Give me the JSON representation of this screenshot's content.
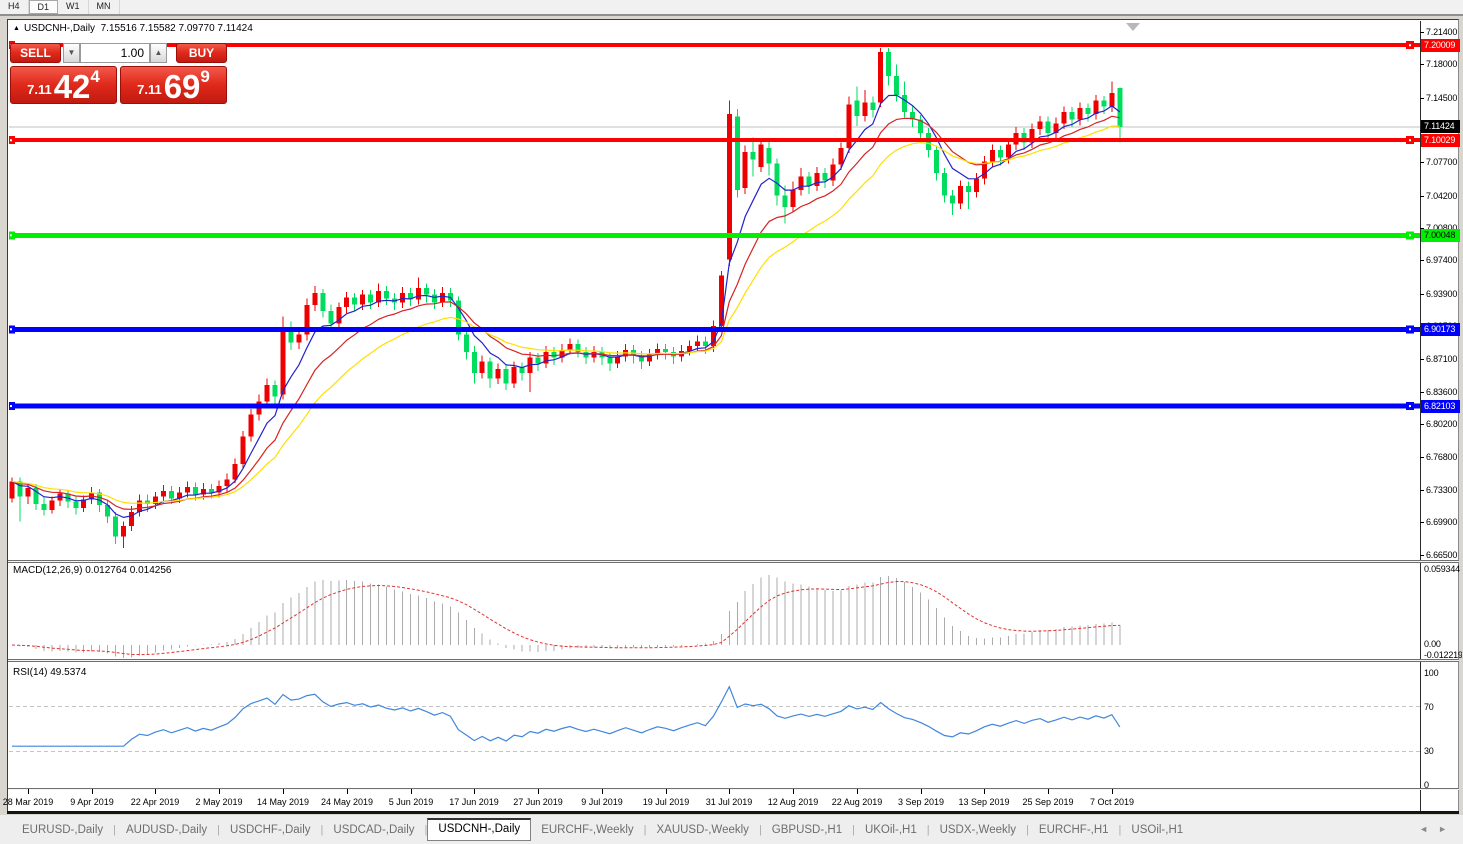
{
  "toolbar": {
    "timeframes": [
      "H4",
      "D1",
      "W1",
      "MN"
    ],
    "active": "D1"
  },
  "title": {
    "collapse_arrow": "▲",
    "symbol": "USDCNH-,Daily",
    "ohlc": "7.15516 7.15582 7.09770 7.11424"
  },
  "trade_panel": {
    "sell_label": "SELL",
    "buy_label": "BUY",
    "volume": "1.00",
    "down_arrow": "▼",
    "up_arrow": "▲",
    "sell_price_main": "7.11",
    "sell_price_big": "42",
    "sell_price_sup": "4",
    "buy_price_main": "7.11",
    "buy_price_big": "69",
    "buy_price_sup": "9"
  },
  "price_axis": {
    "ticks": [
      "7.21400",
      "7.18000",
      "7.14500",
      "7.11100",
      "7.07700",
      "7.04200",
      "7.00800",
      "6.97400",
      "6.93900",
      "6.90500",
      "6.87100",
      "6.83600",
      "6.80200",
      "6.76800",
      "6.73300",
      "6.69900",
      "6.66500"
    ]
  },
  "lines": [
    {
      "price": 7.20009,
      "label": "7.20009",
      "color": "#FF0000",
      "thickness": 4,
      "badge_fg": "#FFFFFF"
    },
    {
      "price": 7.10029,
      "label": "7.10029",
      "color": "#FF0000",
      "thickness": 4,
      "badge_fg": "#FFFFFF"
    },
    {
      "price": 7.00048,
      "label": "7.00048",
      "color": "#00EE00",
      "thickness": 5,
      "badge_fg": "#000000"
    },
    {
      "price": 6.90173,
      "label": "6.90173",
      "color": "#0000FF",
      "thickness": 5,
      "badge_fg": "#FFFFFF"
    },
    {
      "price": 6.82103,
      "label": "6.82103",
      "color": "#0000FF",
      "thickness": 5,
      "badge_fg": "#FFFFFF"
    }
  ],
  "current_price": {
    "label": "7.11424",
    "price": 7.11424,
    "line_color": "#C0C0C0",
    "badge_bg": "#000000",
    "badge_fg": "#FFFFFF"
  },
  "indicators": {
    "macd": {
      "label": "MACD(12,26,9) 0.012764 0.014256",
      "fast": 12,
      "slow": 26,
      "signal": 9,
      "axis_max": "0.059344",
      "axis_zero": "0.00",
      "axis_min": "-0.0122195",
      "bar_color": "#ABABAB",
      "signal_color": "#E23232"
    },
    "rsi": {
      "label": "RSI(14) 49.5374",
      "period": 14,
      "axis": [
        "100",
        "70",
        "30",
        "0"
      ],
      "levels": [
        70,
        30
      ],
      "line_color": "#4086DE",
      "level_color": "#C4C4C4"
    }
  },
  "date_axis": {
    "labels": [
      "28 Mar 2019",
      "9 Apr 2019",
      "22 Apr 2019",
      "2 May 2019",
      "14 May 2019",
      "24 May 2019",
      "5 Jun 2019",
      "17 Jun 2019",
      "27 Jun 2019",
      "9 Jul 2019",
      "19 Jul 2019",
      "31 Jul 2019",
      "12 Aug 2019",
      "22 Aug 2019",
      "3 Sep 2019",
      "13 Sep 2019",
      "25 Sep 2019",
      "7 Oct 2019"
    ],
    "indices": [
      2,
      10,
      18,
      26,
      34,
      42,
      50,
      58,
      66,
      74,
      82,
      90,
      98,
      106,
      114,
      122,
      130,
      138
    ]
  },
  "tabs": {
    "items": [
      {
        "label": "EURUSD-,Daily",
        "active": false
      },
      {
        "label": "AUDUSD-,Daily",
        "active": false
      },
      {
        "label": "USDCHF-,Daily",
        "active": false
      },
      {
        "label": "USDCAD-,Daily",
        "active": false
      },
      {
        "label": "USDCNH-,Daily",
        "active": true
      },
      {
        "label": "EURCHF-,Weekly",
        "active": false
      },
      {
        "label": "XAUUSD-,Weekly",
        "active": false
      },
      {
        "label": "GBPUSD-,H1",
        "active": false
      },
      {
        "label": "UKOil-,H1",
        "active": false
      },
      {
        "label": "USDX-,Weekly",
        "active": false
      },
      {
        "label": "EURCHF-,H1",
        "active": false
      },
      {
        "label": "USOil-,H1",
        "active": false
      }
    ],
    "prev_arrow": "◄",
    "next_arrow": "►"
  },
  "chart_data": {
    "type": "candlestick",
    "symbol": "USDCNH-",
    "period": "Daily",
    "ylim": [
      6.665,
      7.214
    ],
    "x_range_dates": [
      "28 Mar 2019",
      "8 Oct 2019"
    ],
    "up_color": "#EE0000",
    "down_color": "#00DC5E",
    "ma": [
      {
        "period": 6,
        "color": "#2323CC"
      },
      {
        "period": 12,
        "color": "#D42424"
      },
      {
        "period": 20,
        "color": "#FFDE00"
      }
    ],
    "ohlc_current": [
      7.15516,
      7.15582,
      7.0977,
      7.11424
    ],
    "candles": [
      [
        6.724,
        6.746,
        6.72,
        6.742
      ],
      [
        6.742,
        6.746,
        6.7,
        6.726
      ],
      [
        6.726,
        6.74,
        6.718,
        6.735
      ],
      [
        6.735,
        6.739,
        6.712,
        6.718
      ],
      [
        6.718,
        6.726,
        6.706,
        6.712
      ],
      [
        6.712,
        6.726,
        6.708,
        6.722
      ],
      [
        6.722,
        6.734,
        6.716,
        6.729
      ],
      [
        6.729,
        6.733,
        6.714,
        6.721
      ],
      [
        6.721,
        6.727,
        6.707,
        6.714
      ],
      [
        6.714,
        6.727,
        6.71,
        6.723
      ],
      [
        6.723,
        6.736,
        6.718,
        6.73
      ],
      [
        6.73,
        6.734,
        6.71,
        6.717
      ],
      [
        6.717,
        6.722,
        6.698,
        6.705
      ],
      [
        6.705,
        6.71,
        6.676,
        6.684
      ],
      [
        6.684,
        6.7,
        6.672,
        6.695
      ],
      [
        6.695,
        6.716,
        6.69,
        6.71
      ],
      [
        6.71,
        6.728,
        6.705,
        6.722
      ],
      [
        6.722,
        6.728,
        6.71,
        6.718
      ],
      [
        6.718,
        6.731,
        6.713,
        6.726
      ],
      [
        6.726,
        6.738,
        6.72,
        6.732
      ],
      [
        6.732,
        6.737,
        6.718,
        6.724
      ],
      [
        6.724,
        6.736,
        6.719,
        6.73
      ],
      [
        6.73,
        6.742,
        6.725,
        6.736
      ],
      [
        6.736,
        6.741,
        6.722,
        6.728
      ],
      [
        6.728,
        6.74,
        6.723,
        6.734
      ],
      [
        6.734,
        6.739,
        6.724,
        6.73
      ],
      [
        6.73,
        6.743,
        6.725,
        6.737
      ],
      [
        6.737,
        6.75,
        6.731,
        6.744
      ],
      [
        6.744,
        6.766,
        6.74,
        6.76
      ],
      [
        6.76,
        6.795,
        6.755,
        6.789
      ],
      [
        6.789,
        6.818,
        6.784,
        6.812
      ],
      [
        6.812,
        6.833,
        6.806,
        6.826
      ],
      [
        6.826,
        6.85,
        6.82,
        6.843
      ],
      [
        6.843,
        6.848,
        6.824,
        6.831
      ],
      [
        6.833,
        6.915,
        6.828,
        6.902
      ],
      [
        6.902,
        6.91,
        6.88,
        6.888
      ],
      [
        6.888,
        6.903,
        6.881,
        6.896
      ],
      [
        6.896,
        6.934,
        6.89,
        6.927
      ],
      [
        6.927,
        6.947,
        6.921,
        6.94
      ],
      [
        6.94,
        6.944,
        6.914,
        6.921
      ],
      [
        6.921,
        6.928,
        6.9,
        6.908
      ],
      [
        6.908,
        6.93,
        6.903,
        6.925
      ],
      [
        6.925,
        6.941,
        6.919,
        6.935
      ],
      [
        6.935,
        6.94,
        6.921,
        6.928
      ],
      [
        6.928,
        6.943,
        6.922,
        6.938
      ],
      [
        6.938,
        6.943,
        6.923,
        6.93
      ],
      [
        6.93,
        6.95,
        6.925,
        6.942
      ],
      [
        6.942,
        6.947,
        6.927,
        6.934
      ],
      [
        6.934,
        6.94,
        6.922,
        6.93
      ],
      [
        6.93,
        6.946,
        6.924,
        6.94
      ],
      [
        6.94,
        6.945,
        6.926,
        6.933
      ],
      [
        6.933,
        6.956,
        6.928,
        6.945
      ],
      [
        6.945,
        6.95,
        6.93,
        6.938
      ],
      [
        6.938,
        6.944,
        6.923,
        6.93
      ],
      [
        6.93,
        6.946,
        6.925,
        6.94
      ],
      [
        6.94,
        6.945,
        6.925,
        6.932
      ],
      [
        6.932,
        6.936,
        6.89,
        6.896
      ],
      [
        6.896,
        6.902,
        6.87,
        6.878
      ],
      [
        6.878,
        6.884,
        6.845,
        6.856
      ],
      [
        6.856,
        6.874,
        6.85,
        6.868
      ],
      [
        6.868,
        6.872,
        6.84,
        6.85
      ],
      [
        6.85,
        6.866,
        6.844,
        6.86
      ],
      [
        6.86,
        6.865,
        6.838,
        6.845
      ],
      [
        6.845,
        6.868,
        6.84,
        6.862
      ],
      [
        6.862,
        6.867,
        6.848,
        6.856
      ],
      [
        6.856,
        6.878,
        6.836,
        6.872
      ],
      [
        6.872,
        6.877,
        6.858,
        6.866
      ],
      [
        6.866,
        6.884,
        6.861,
        6.878
      ],
      [
        6.878,
        6.883,
        6.864,
        6.872
      ],
      [
        6.872,
        6.886,
        6.867,
        6.88
      ],
      [
        6.88,
        6.892,
        6.875,
        6.886
      ],
      [
        6.886,
        6.891,
        6.872,
        6.878
      ],
      [
        6.878,
        6.883,
        6.865,
        6.872
      ],
      [
        6.872,
        6.884,
        6.867,
        6.878
      ],
      [
        6.878,
        6.883,
        6.864,
        6.872
      ],
      [
        6.872,
        6.877,
        6.858,
        6.866
      ],
      [
        6.866,
        6.879,
        6.861,
        6.873
      ],
      [
        6.873,
        6.886,
        6.868,
        6.88
      ],
      [
        6.88,
        6.885,
        6.866,
        6.874
      ],
      [
        6.874,
        6.879,
        6.86,
        6.868
      ],
      [
        6.868,
        6.881,
        6.863,
        6.875
      ],
      [
        6.875,
        6.887,
        6.87,
        6.881
      ],
      [
        6.881,
        6.886,
        6.87,
        6.878
      ],
      [
        6.878,
        6.883,
        6.865,
        6.873
      ],
      [
        6.873,
        6.885,
        6.868,
        6.879
      ],
      [
        6.879,
        6.89,
        6.874,
        6.884
      ],
      [
        6.884,
        6.895,
        6.879,
        6.889
      ],
      [
        6.889,
        6.894,
        6.876,
        6.884
      ],
      [
        6.884,
        6.911,
        6.878,
        6.905
      ],
      [
        6.905,
        6.963,
        6.9,
        6.958
      ],
      [
        6.975,
        7.142,
        6.968,
        7.128
      ],
      [
        7.125,
        7.133,
        7.04,
        7.048
      ],
      [
        7.05,
        7.095,
        7.044,
        7.088
      ],
      [
        7.088,
        7.103,
        7.062,
        7.08
      ],
      [
        7.072,
        7.101,
        7.067,
        7.096
      ],
      [
        7.092,
        7.099,
        7.063,
        7.076
      ],
      [
        7.076,
        7.081,
        7.032,
        7.042
      ],
      [
        7.042,
        7.053,
        7.013,
        7.03
      ],
      [
        7.03,
        7.057,
        7.025,
        7.048
      ],
      [
        7.048,
        7.071,
        7.042,
        7.062
      ],
      [
        7.062,
        7.067,
        7.044,
        7.052
      ],
      [
        7.052,
        7.072,
        7.047,
        7.066
      ],
      [
        7.066,
        7.071,
        7.05,
        7.058
      ],
      [
        7.058,
        7.081,
        7.052,
        7.075
      ],
      [
        7.075,
        7.098,
        7.069,
        7.092
      ],
      [
        7.092,
        7.146,
        7.087,
        7.138
      ],
      [
        7.142,
        7.157,
        7.115,
        7.126
      ],
      [
        7.126,
        7.153,
        7.12,
        7.14
      ],
      [
        7.14,
        7.146,
        7.124,
        7.132
      ],
      [
        7.14,
        7.197,
        7.135,
        7.193
      ],
      [
        7.193,
        7.197,
        7.158,
        7.168
      ],
      [
        7.168,
        7.18,
        7.141,
        7.148
      ],
      [
        7.148,
        7.162,
        7.124,
        7.13
      ],
      [
        7.13,
        7.136,
        7.114,
        7.122
      ],
      [
        7.122,
        7.127,
        7.101,
        7.108
      ],
      [
        7.108,
        7.113,
        7.082,
        7.09
      ],
      [
        7.09,
        7.095,
        7.058,
        7.066
      ],
      [
        7.066,
        7.071,
        7.035,
        7.042
      ],
      [
        7.042,
        7.048,
        7.022,
        7.034
      ],
      [
        7.034,
        7.058,
        7.028,
        7.052
      ],
      [
        7.052,
        7.057,
        7.028,
        7.046
      ],
      [
        7.046,
        7.066,
        7.04,
        7.06
      ],
      [
        7.06,
        7.084,
        7.054,
        7.078
      ],
      [
        7.078,
        7.096,
        7.072,
        7.09
      ],
      [
        7.09,
        7.095,
        7.074,
        7.082
      ],
      [
        7.082,
        7.102,
        7.076,
        7.096
      ],
      [
        7.096,
        7.114,
        7.09,
        7.108
      ],
      [
        7.108,
        7.113,
        7.09,
        7.098
      ],
      [
        7.098,
        7.118,
        7.092,
        7.112
      ],
      [
        7.112,
        7.126,
        7.106,
        7.12
      ],
      [
        7.12,
        7.125,
        7.1,
        7.108
      ],
      [
        7.108,
        7.124,
        7.102,
        7.118
      ],
      [
        7.118,
        7.136,
        7.112,
        7.13
      ],
      [
        7.13,
        7.135,
        7.114,
        7.122
      ],
      [
        7.122,
        7.14,
        7.116,
        7.134
      ],
      [
        7.134,
        7.139,
        7.12,
        7.128
      ],
      [
        7.128,
        7.148,
        7.122,
        7.142
      ],
      [
        7.142,
        7.147,
        7.128,
        7.136
      ],
      [
        7.136,
        7.162,
        7.13,
        7.15
      ],
      [
        7.15516,
        7.15582,
        7.0977,
        7.11424
      ]
    ]
  }
}
